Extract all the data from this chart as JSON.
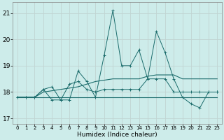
{
  "xlabel": "Humidex (Indice chaleur)",
  "xlim": [
    -0.5,
    23.5
  ],
  "ylim": [
    16.8,
    21.4
  ],
  "yticks": [
    17,
    18,
    19,
    20,
    21
  ],
  "xticks": [
    0,
    1,
    2,
    3,
    4,
    5,
    6,
    7,
    8,
    9,
    10,
    11,
    12,
    13,
    14,
    15,
    16,
    17,
    18,
    19,
    20,
    21,
    22,
    23
  ],
  "background_color": "#cdecea",
  "grid_color": "#c0d4d2",
  "line_color": "#1a6b6b",
  "series": [
    {
      "y": [
        17.8,
        17.8,
        17.8,
        18.1,
        18.2,
        17.7,
        17.7,
        18.8,
        18.4,
        17.8,
        19.4,
        21.1,
        19.0,
        19.0,
        19.6,
        18.5,
        20.3,
        19.5,
        18.5,
        17.8,
        17.55,
        17.4,
        18.0,
        18.0
      ],
      "marker": true
    },
    {
      "y": [
        17.8,
        17.8,
        17.8,
        18.1,
        17.7,
        17.7,
        18.3,
        18.4,
        18.1,
        18.0,
        18.1,
        18.1,
        18.1,
        18.1,
        18.1,
        18.5,
        18.5,
        18.5,
        18.0,
        18.0,
        18.0,
        18.0,
        18.0,
        18.0
      ],
      "marker": true
    },
    {
      "y": [
        17.8,
        17.8,
        17.8,
        18.0,
        18.05,
        18.1,
        18.15,
        18.2,
        18.3,
        18.4,
        18.45,
        18.5,
        18.5,
        18.5,
        18.5,
        18.6,
        18.65,
        18.65,
        18.65,
        18.5,
        18.5,
        18.5,
        18.5,
        18.5
      ],
      "marker": false
    },
    {
      "y": [
        17.8,
        17.8,
        17.8,
        17.8,
        17.8,
        17.8,
        17.8,
        17.8,
        17.8,
        17.8,
        17.8,
        17.8,
        17.8,
        17.8,
        17.8,
        17.8,
        17.8,
        17.8,
        17.8,
        17.8,
        17.8,
        17.8,
        17.8,
        17.8
      ],
      "marker": false
    }
  ]
}
